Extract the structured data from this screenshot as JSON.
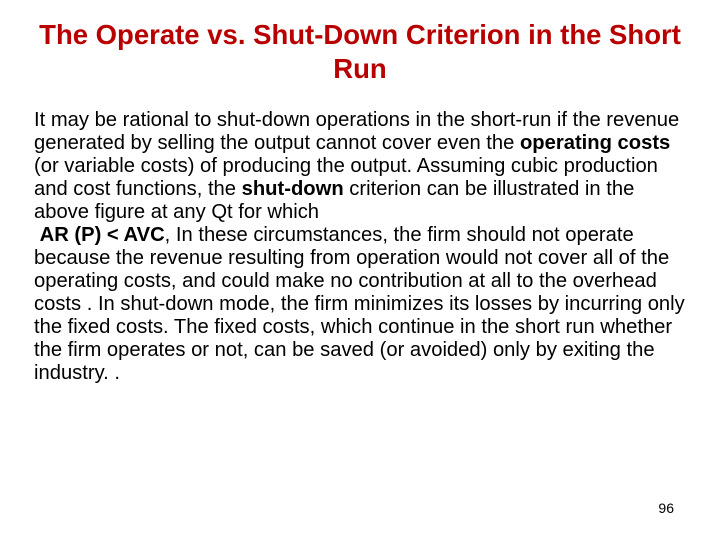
{
  "slide": {
    "title": "The Operate vs. Shut-Down Criterion in the Short Run",
    "body": {
      "p1a": "It may be rational to shut-down operations in the short-run if the revenue generated by selling the output cannot cover even the ",
      "operating_costs": "operating costs",
      "p1b": " (or variable costs) of producing the output. Assuming cubic production and cost functions, the ",
      "shutdown": "shut-down",
      "p1c": " criterion can be illustrated in the above figure at any Qt for which",
      "indent_prefix": " ",
      "ar_p_avc": "AR (P) < AVC",
      "p2a": ", In these circumstances, the firm should not operate because the revenue resulting from operation would not cover all of the operating costs, and could make no contribution at all to the overhead costs . In shut-down mode, the firm minimizes its losses by incurring only the fixed costs. The fixed costs, which continue in the short run whether the firm operates or not, can be saved (or avoided) only by exiting the industry. ."
    },
    "page_number": "96",
    "colors": {
      "title_color": "#b90000",
      "text_color": "#000000",
      "background": "#ffffff"
    },
    "fonts": {
      "family": "Arial",
      "title_size_pt": 21,
      "body_size_pt": 15,
      "page_size_pt": 10
    }
  }
}
